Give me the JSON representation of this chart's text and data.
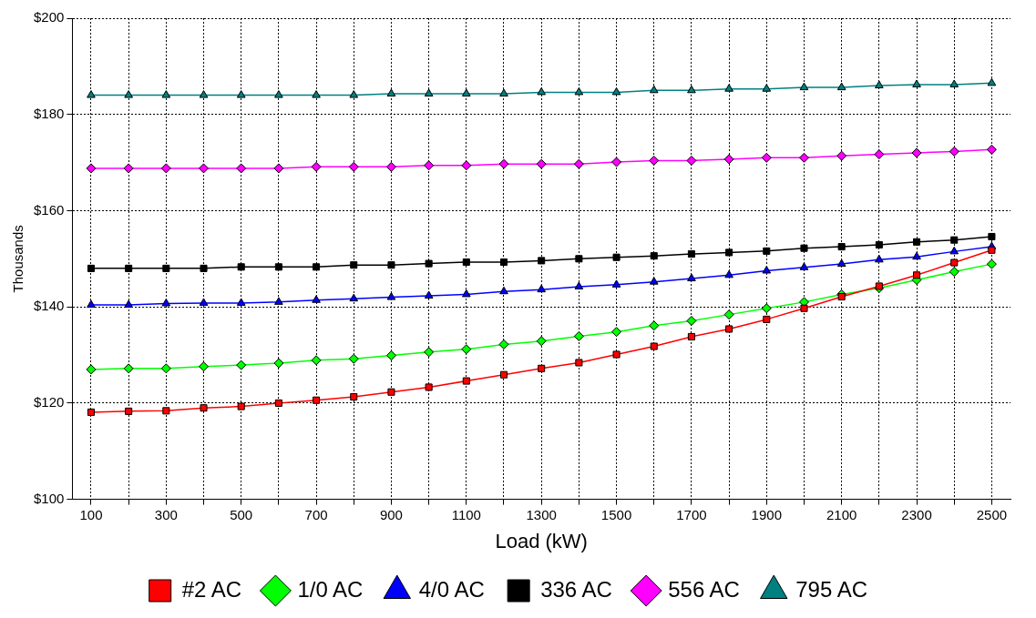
{
  "chart_data": {
    "type": "line",
    "xlabel": "Load (kW)",
    "ylabel": "Thousands",
    "categories": [
      "100",
      null,
      "300",
      null,
      "500",
      null,
      "700",
      null,
      "900",
      null,
      "1100",
      null,
      "1300",
      null,
      "1500",
      null,
      "1700",
      null,
      "1900",
      null,
      "2100",
      null,
      "2300",
      null,
      "2500"
    ],
    "ylim": [
      100,
      200
    ],
    "yticks": [
      {
        "value": 100,
        "label": "$100"
      },
      {
        "value": 120,
        "label": "$120"
      },
      {
        "value": 140,
        "label": "$140"
      },
      {
        "value": 160,
        "label": "$160"
      },
      {
        "value": 180,
        "label": "$180"
      },
      {
        "value": 200,
        "label": "$200"
      }
    ],
    "grid": true,
    "legend": "bottom",
    "line_style": "solid",
    "series": [
      {
        "name": "#2 AC",
        "color": "#ff0000",
        "marker": "square",
        "values": [
          118.1,
          118.3,
          118.4,
          119,
          119.3,
          120,
          120.6,
          121.3,
          122.3,
          123.3,
          124.6,
          125.9,
          127.2,
          128.4,
          130.1,
          131.8,
          133.8,
          135.4,
          137.4,
          139.7,
          142.1,
          144.3,
          146.6,
          149.2,
          151.8
        ]
      },
      {
        "name": "1/0 AC",
        "color": "#00ff00",
        "marker": "diamond",
        "values": [
          127,
          127.2,
          127.2,
          127.6,
          127.9,
          128.3,
          128.9,
          129.2,
          129.9,
          130.6,
          131.2,
          132.2,
          132.9,
          133.9,
          134.8,
          136.1,
          137.1,
          138.4,
          139.7,
          141,
          142.6,
          143.9,
          145.6,
          147.3,
          148.9
        ]
      },
      {
        "name": "4/0 AC",
        "color": "#0000ff",
        "marker": "triangle",
        "values": [
          140.4,
          140.4,
          140.7,
          140.8,
          140.8,
          141,
          141.4,
          141.7,
          142,
          142.3,
          142.6,
          143.2,
          143.6,
          144.2,
          144.6,
          145.2,
          145.9,
          146.6,
          147.5,
          148.2,
          148.9,
          149.8,
          150.4,
          151.5,
          152.5
        ]
      },
      {
        "name": "336 AC",
        "color": "#000000",
        "marker": "square",
        "values": [
          148,
          148,
          148,
          148,
          148.3,
          148.3,
          148.3,
          148.7,
          148.7,
          149,
          149.3,
          149.3,
          149.6,
          150,
          150.3,
          150.6,
          151,
          151.3,
          151.6,
          152.2,
          152.5,
          152.9,
          153.5,
          153.9,
          154.6
        ]
      },
      {
        "name": "556 AC",
        "color": "#ff00ff",
        "marker": "diamond",
        "values": [
          168.8,
          168.8,
          168.8,
          168.8,
          168.8,
          168.8,
          169.1,
          169.1,
          169.1,
          169.4,
          169.4,
          169.7,
          169.7,
          169.7,
          170.1,
          170.4,
          170.4,
          170.7,
          171,
          171,
          171.4,
          171.7,
          172,
          172.3,
          172.7
        ]
      },
      {
        "name": "795 AC",
        "color": "#008080",
        "marker": "triangle",
        "values": [
          184,
          184,
          184,
          184,
          184,
          184,
          184,
          184,
          184.3,
          184.3,
          184.3,
          184.3,
          184.6,
          184.6,
          184.6,
          185,
          185,
          185.3,
          185.3,
          185.6,
          185.6,
          186,
          186.2,
          186.2,
          186.5
        ]
      }
    ]
  }
}
